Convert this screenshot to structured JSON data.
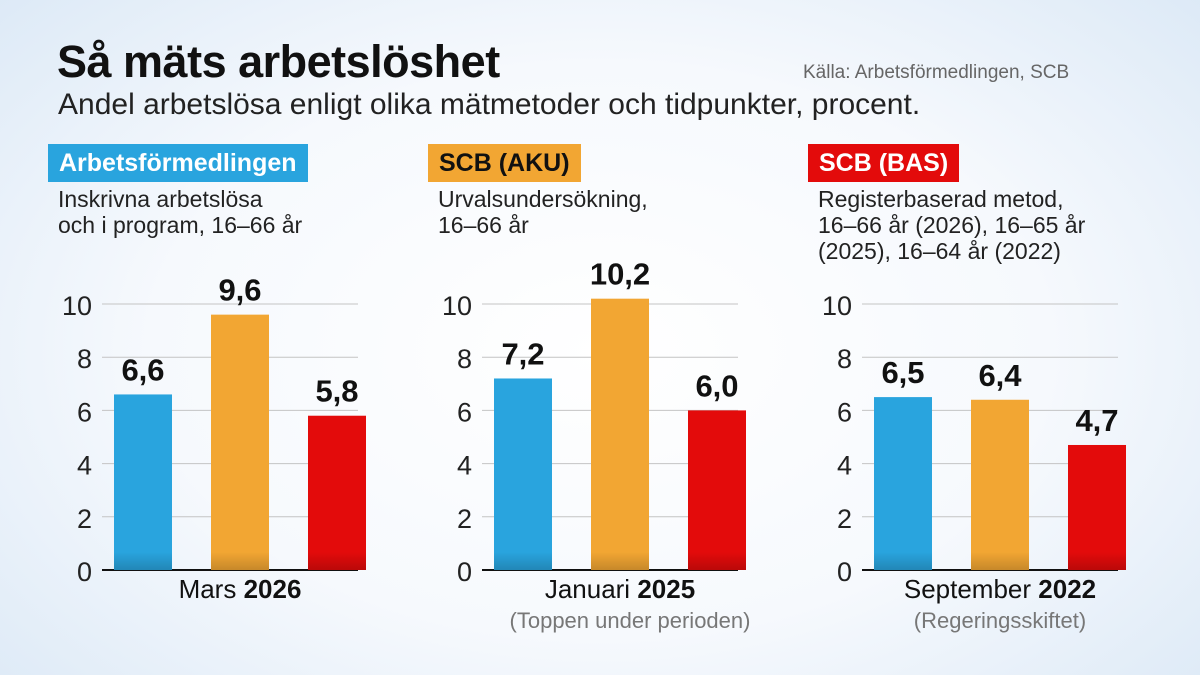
{
  "title": "Så mäts arbetslöshet",
  "source": "Källa: Arbetsförmedlingen, SCB",
  "subtitle": "Andel arbetslösa enligt olika mätmetoder och tidpunkter, procent.",
  "colors": {
    "arbetsformedlingen": "#29a4de",
    "scb_aku": "#f2a633",
    "scb_bas": "#e30b0b"
  },
  "methods": [
    {
      "name": "Arbetsförmedlingen",
      "color": "#29a4de",
      "text_color": "#ffffff",
      "desc": [
        "Inskrivna arbetslösa",
        "och i program, 16–66 år"
      ]
    },
    {
      "name": "SCB (AKU)",
      "color": "#f2a633",
      "text_color": "#111111",
      "desc": [
        "Urvalsundersökning,",
        "16–66 år"
      ]
    },
    {
      "name": "SCB (BAS)",
      "color": "#e30b0b",
      "text_color": "#ffffff",
      "desc": [
        "Registerbaserad metod,",
        "16–66 år (2026), 16–65 år",
        "(2025), 16–64 år (2022)"
      ]
    }
  ],
  "periods": [
    {
      "month": "Mars",
      "year": "2026",
      "note": ""
    },
    {
      "month": "Januari",
      "year": "2025",
      "note": "(Toppen under perioden)"
    },
    {
      "month": "September",
      "year": "2022",
      "note": "(Regeringsskiftet)"
    }
  ],
  "chart_data": {
    "type": "bar",
    "ylim": [
      0,
      10
    ],
    "yticks": [
      "0",
      "2",
      "4",
      "6",
      "8",
      "10"
    ],
    "series": [
      {
        "name": "Arbetsförmedlingen",
        "values": [
          6.6,
          7.2,
          6.5
        ],
        "labels": [
          "6,6",
          "7,2",
          "6,5"
        ]
      },
      {
        "name": "SCB (AKU)",
        "values": [
          9.6,
          10.2,
          6.4
        ],
        "labels": [
          "9,6",
          "10,2",
          "6,4"
        ]
      },
      {
        "name": "SCB (BAS)",
        "values": [
          5.8,
          6.0,
          4.7
        ],
        "labels": [
          "5,8",
          "6,0",
          "4,7"
        ]
      }
    ],
    "categories": [
      "Mars 2026",
      "Januari 2025",
      "September 2022"
    ]
  }
}
